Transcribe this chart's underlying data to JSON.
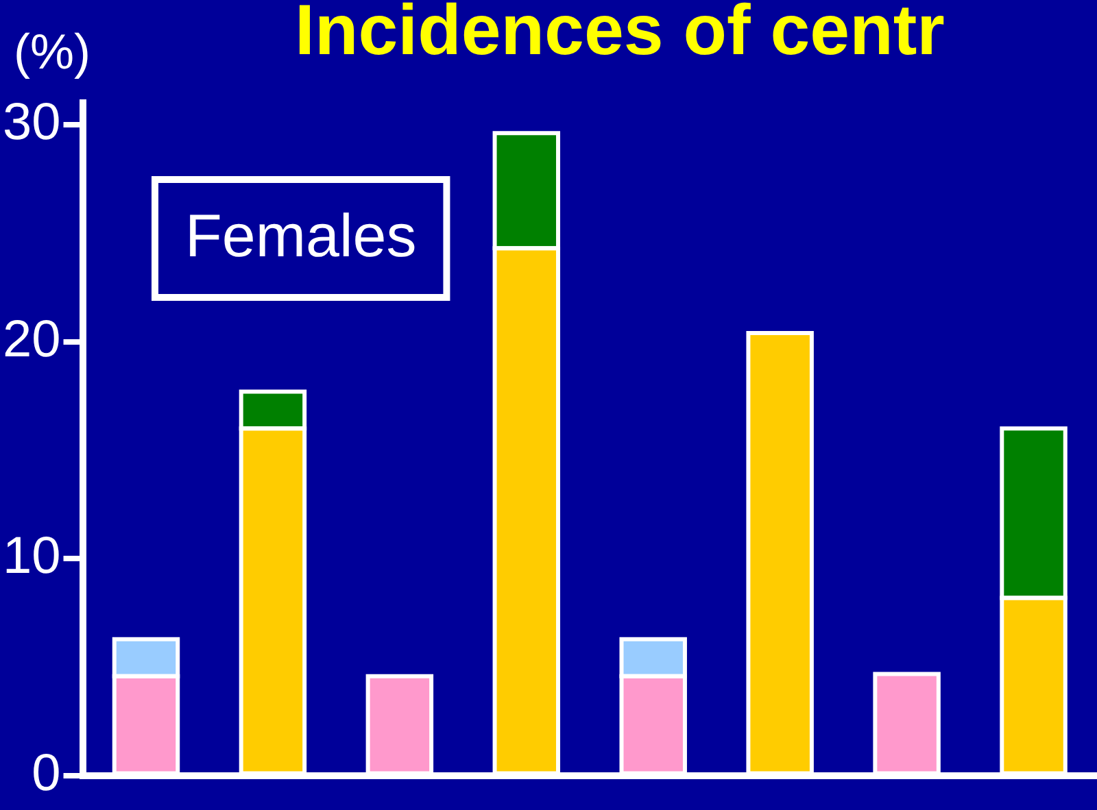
{
  "chart_data": {
    "type": "bar",
    "title": "Incidences of centr",
    "ylabel": "(%)",
    "annotations": [
      "Females"
    ],
    "categories": [
      null,
      null,
      null,
      null,
      null,
      null,
      null,
      null
    ],
    "series": [
      {
        "color": "#ff99cc",
        "values": [
          4.6,
          null,
          4.6,
          null,
          4.6,
          null,
          4.7,
          null
        ]
      },
      {
        "color": "#99ccff",
        "values": [
          1.7,
          null,
          null,
          null,
          1.7,
          null,
          null,
          null
        ]
      },
      {
        "color": "#ffcc00",
        "values": [
          null,
          16,
          null,
          24.3,
          null,
          20.4,
          null,
          8.2
        ]
      },
      {
        "color": "#008000",
        "values": [
          null,
          1.7,
          null,
          5.3,
          null,
          null,
          null,
          7.8
        ]
      }
    ],
    "stacked": true,
    "ylim": [
      0,
      31
    ],
    "yticks": [
      0,
      10,
      20,
      30
    ],
    "grid": false,
    "legend": false
  }
}
